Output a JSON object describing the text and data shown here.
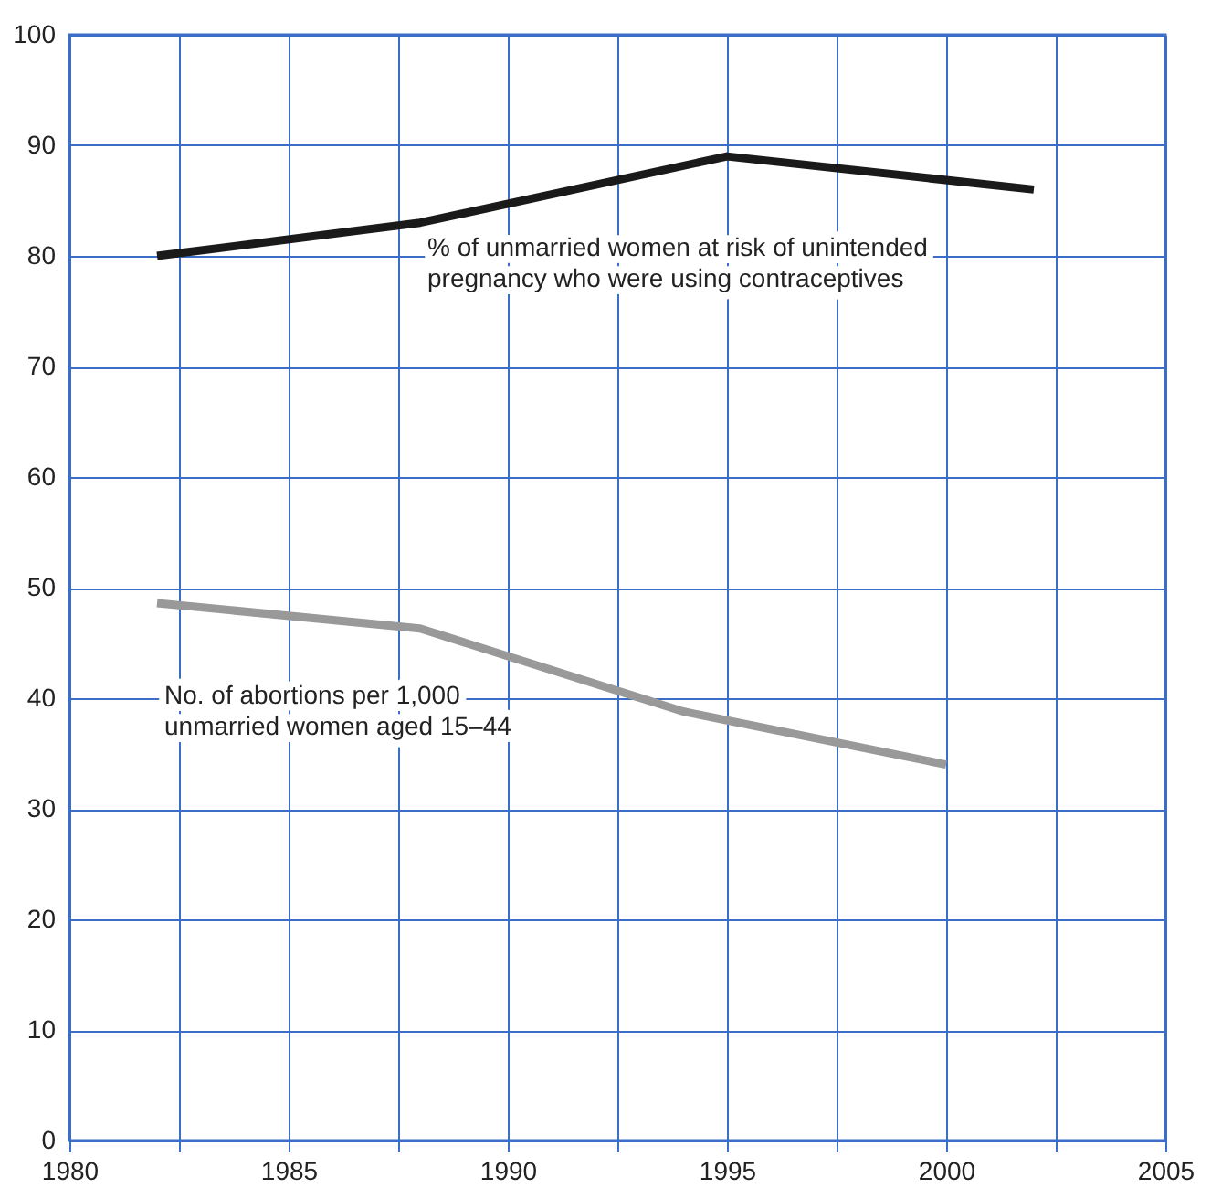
{
  "chart_data": {
    "type": "line",
    "xlim": [
      1980,
      2005
    ],
    "ylim": [
      0,
      100
    ],
    "xticks": [
      1980,
      {
        "value": 1982.5,
        "label": null
      },
      1985,
      {
        "value": 1987.5,
        "label": null
      },
      1990,
      {
        "value": 1992.5,
        "label": null
      },
      1995,
      {
        "value": 1997.5,
        "label": null
      },
      2000,
      {
        "value": 2002.5,
        "label": null
      },
      2005
    ],
    "yticks": [
      0,
      10,
      20,
      30,
      40,
      50,
      60,
      70,
      80,
      90,
      100
    ],
    "grid": true,
    "marker": "none",
    "line_style": "solid",
    "series": [
      {
        "name": "% of unmarried women at risk of unintended pregnancy who were using contraceptives",
        "color": "#1a1a1a",
        "x": [
          1982,
          1988,
          1995,
          2002
        ],
        "values": [
          80,
          83,
          89,
          86
        ]
      },
      {
        "name": "No. of abortions per 1,000 unmarried women aged 15–44",
        "color": "#999999",
        "x": [
          1982,
          1988,
          1994,
          2000
        ],
        "values": [
          48.6,
          46.3,
          38.8,
          34.0
        ]
      }
    ]
  }
}
